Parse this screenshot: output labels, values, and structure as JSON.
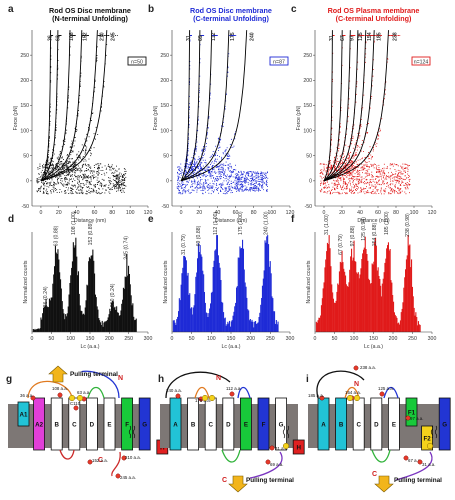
{
  "panels": {
    "a": {
      "label": "a",
      "title1": "Rod OS Disc membrane",
      "title2": "(N-terminal Unfolding)",
      "color": "#111111",
      "n": "n=50",
      "peaks": [
        "36",
        "63",
        "108",
        "152",
        "210",
        "245"
      ],
      "xticks": [
        "0",
        "20",
        "40",
        "60",
        "80",
        "100",
        "120"
      ],
      "yticks": [
        "0",
        "50",
        "100",
        "150",
        "200",
        "250"
      ],
      "yticksneg": [
        "-50"
      ],
      "xlabel": "Distance (nm)",
      "ylabel": "Force (pN)"
    },
    "b": {
      "label": "b",
      "title1": "Rod OS Disc membrane",
      "title2": "(C-terminal Unfolding)",
      "color": "#1f2bd6",
      "n": "n=87",
      "peaks": [
        "31",
        "69",
        "112",
        "175",
        "240"
      ],
      "xticks": [
        "0",
        "20",
        "40",
        "60",
        "80",
        "100",
        "120"
      ],
      "yticks": [
        "0",
        "50",
        "100",
        "150",
        "200",
        "250"
      ],
      "yticksneg": [
        "-50"
      ],
      "xlabel": "Distance (nm)",
      "ylabel": "Force (pN)"
    },
    "c": {
      "label": "c",
      "title1": "Rod OS Plasma membrane",
      "title2": "(C-terminal Unfolding)",
      "color": "#e01b1b",
      "n": "n=124",
      "peaks": [
        "31",
        "67",
        "97",
        "125",
        "154",
        "185",
        "238"
      ],
      "xticks": [
        "0",
        "20",
        "40",
        "60",
        "80",
        "100",
        "120"
      ],
      "yticks": [
        "0",
        "50",
        "100",
        "150",
        "200",
        "250"
      ],
      "yticksneg": [
        "-50"
      ],
      "xlabel": "Distance (nm)",
      "ylabel": "Force (pN)"
    },
    "d": {
      "label": "d",
      "color": "#111111",
      "peaks": [
        "36 (0.24)",
        "63 (0.88)",
        "108 (1.00)",
        "152 (0.89)",
        "210 (0.24)",
        "245 (0.74)"
      ],
      "xticks": [
        "0",
        "50",
        "100",
        "150",
        "200",
        "250",
        "300"
      ],
      "xlabel": "Lc (a.a.)",
      "ylabel": "Normalized counts"
    },
    "e": {
      "label": "e",
      "color": "#1f2bd6",
      "peaks": [
        "31 (0.79)",
        "69 (0.88)",
        "112 (1.00)",
        "175 (1.00)",
        "240 (1.00)"
      ],
      "xticks": [
        "0",
        "50",
        "100",
        "150",
        "200",
        "250",
        "300"
      ],
      "xlabel": "Lc (a.a.)",
      "ylabel": "Normalized counts"
    },
    "f": {
      "label": "f",
      "color": "#e01b1b",
      "peaks": [
        "31 (1.00)",
        "67 (0.79)",
        "97 (0.88)",
        "125 (0.94)",
        "154 (0.88)",
        "185 (1.00)",
        "238 (0.98)"
      ],
      "xticks": [
        "0",
        "50",
        "100",
        "150",
        "200",
        "250",
        "300"
      ],
      "xlabel": "Lc (a.a.)",
      "ylabel": "Normalized counts"
    },
    "g": {
      "label": "g",
      "pulling": "Pulling terminal",
      "n": "N",
      "c": "C",
      "helices": [
        "A1",
        "A2",
        "B",
        "C",
        "D",
        "E",
        "F",
        "G",
        "H"
      ],
      "aa": [
        "36 a.a.",
        "108 a.a.",
        "C110",
        "63 a.a.",
        "152 a.a.",
        "210 a.a.",
        "245 a.a."
      ]
    },
    "h": {
      "label": "h",
      "pulling": "Pulling terminal",
      "n": "N",
      "c": "C",
      "helices": [
        "A",
        "B",
        "C",
        "D",
        "E",
        "F",
        "G",
        "H"
      ],
      "aa": [
        "240 a.a.",
        "175 a.a.",
        "112 a.a.",
        "69 a.a.",
        "31 a.a."
      ]
    },
    "i": {
      "label": "i",
      "pulling": "Pulling terminal",
      "n": "N",
      "c": "C",
      "helices": [
        "A",
        "B",
        "C",
        "D",
        "E",
        "F1",
        "F2",
        "G",
        "H"
      ],
      "aa": [
        "238 a.a.",
        "185 a.a.",
        "154 a.a.",
        "125 a.a.",
        "97 a.a.",
        "67 a.a.",
        "31 a.a."
      ]
    }
  },
  "chart_data": [
    {
      "type": "scatter",
      "panel": "a",
      "xlabel": "Distance (nm)",
      "ylabel": "Force (pN)",
      "xlim": [
        -10,
        120
      ],
      "ylim": [
        -50,
        300
      ],
      "wlc_peaks": [
        36,
        63,
        108,
        152,
        210,
        245
      ],
      "title": "Rod OS Disc membrane (N-terminal Unfolding)"
    },
    {
      "type": "scatter",
      "panel": "b",
      "xlabel": "Distance (nm)",
      "ylabel": "Force (pN)",
      "xlim": [
        -10,
        120
      ],
      "ylim": [
        -50,
        300
      ],
      "wlc_peaks": [
        31,
        69,
        112,
        175,
        240
      ],
      "title": "Rod OS Disc membrane (C-terminal Unfolding)"
    },
    {
      "type": "scatter",
      "panel": "c",
      "xlabel": "Distance (nm)",
      "ylabel": "Force (pN)",
      "xlim": [
        -10,
        120
      ],
      "ylim": [
        -50,
        300
      ],
      "wlc_peaks": [
        31,
        67,
        97,
        125,
        154,
        185,
        238
      ],
      "title": "Rod OS Plasma membrane (C-terminal Unfolding)"
    },
    {
      "type": "bar",
      "panel": "d",
      "xlabel": "Lc (a.a.)",
      "ylabel": "Normalized counts",
      "xlim": [
        0,
        300
      ],
      "x": [
        36,
        63,
        108,
        152,
        210,
        245
      ],
      "values": [
        0.24,
        0.88,
        1.0,
        0.89,
        0.24,
        0.74
      ]
    },
    {
      "type": "bar",
      "panel": "e",
      "xlabel": "Lc (a.a.)",
      "ylabel": "Normalized counts",
      "xlim": [
        0,
        300
      ],
      "x": [
        31,
        69,
        112,
        175,
        240
      ],
      "values": [
        0.79,
        0.88,
        1.0,
        1.0,
        1.0
      ]
    },
    {
      "type": "bar",
      "panel": "f",
      "xlabel": "Lc (a.a.)",
      "ylabel": "Normalized counts",
      "xlim": [
        0,
        300
      ],
      "x": [
        31,
        67,
        97,
        125,
        154,
        185,
        238
      ],
      "values": [
        1.0,
        0.79,
        0.88,
        0.94,
        0.88,
        1.0,
        0.98
      ]
    }
  ]
}
